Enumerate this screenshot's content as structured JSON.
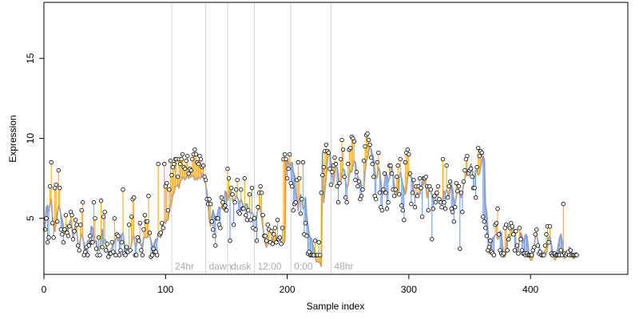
{
  "chart_data": {
    "type": "scatter",
    "title": "",
    "xlabel": "Sample index",
    "ylabel": "Expression",
    "xlim": [
      0,
      480
    ],
    "ylim": [
      1.5,
      18.5
    ],
    "x_ticks": [
      0,
      100,
      200,
      300,
      400
    ],
    "y_ticks": [
      5,
      10,
      15
    ],
    "grid": false,
    "legend": "none",
    "colors": {
      "point_outline": "#000000",
      "fit_line": "#a9a9a9",
      "residual_above": "#ffa500",
      "residual_below": "#6495ed",
      "separator": "#d3d3d3",
      "label": "#a9a9a9"
    },
    "separators": [
      {
        "x": 105,
        "label": "24hr"
      },
      {
        "x": 133,
        "label": "dawn"
      },
      {
        "x": 151,
        "label": "dusk"
      },
      {
        "x": 173,
        "label": "12:00"
      },
      {
        "x": 203,
        "label": "0:00"
      },
      {
        "x": 236,
        "label": "48hr"
      }
    ],
    "series": [
      {
        "x_start": 1,
        "fitted": [
          4.6,
          5.7,
          5.8,
          5.4,
          5.9,
          6.2,
          5.1,
          4.6,
          4.2,
          4.8,
          5.3,
          5.8,
          5.6,
          5.2,
          4.9,
          4.5,
          4.0,
          4.4,
          4.6,
          4.3,
          4.7,
          4.9,
          4.4,
          3.7,
          4.1,
          4.6,
          4.2,
          3.4,
          3.1,
          3.7,
          4.0,
          3.8,
          3.3,
          3.0,
          3.1,
          3.6,
          3.5,
          3.9,
          4.5,
          4.4,
          3.9,
          3.5,
          3.6,
          3.2,
          3.0,
          3.1,
          3.8,
          4.3,
          3.4,
          3.7,
          3.6,
          3.1,
          2.9,
          2.9,
          3.0,
          3.2,
          3.3,
          3.6,
          3.7,
          3.8,
          3.6,
          3.7,
          3.8,
          4.0,
          4.1,
          3.5,
          3.0,
          3.2,
          3.0,
          2.9,
          3.1,
          3.4,
          3.8,
          3.9,
          3.3,
          3.3,
          3.9,
          3.9,
          3.4,
          3.4,
          3.1,
          3.8,
          3.8,
          3.8,
          3.8,
          4.0,
          3.9,
          3.6,
          3.3,
          3.2,
          3.5,
          3.7,
          3.6,
          4.0,
          4.0,
          3.8,
          4.0,
          4.6,
          4.8,
          4.7,
          4.9,
          4.9,
          5.5,
          5.8,
          6.0,
          6.5,
          6.6,
          7.0,
          7.0,
          7.1,
          6.9,
          7.3,
          7.4,
          7.6,
          7.5,
          7.4,
          7.6,
          7.7,
          7.5,
          7.6,
          7.6,
          7.7,
          7.6,
          7.4,
          7.5,
          7.4,
          7.6,
          7.5,
          7.5,
          7.8,
          7.8,
          7.5,
          7.1,
          6.6,
          5.9,
          4.9,
          4.5,
          5.1,
          5.5,
          5.2,
          5.1,
          5.0,
          5.4,
          5.7,
          5.6,
          5.7,
          5.7,
          5.5,
          6.7,
          6.6,
          6.1,
          6.4,
          6.7,
          6.8,
          6.1,
          6.2,
          6.1,
          6.4,
          6.3,
          6.1,
          5.9,
          6.2,
          6.0,
          5.7,
          5.8,
          5.9,
          5.9,
          5.6,
          5.4,
          5.3,
          5.4,
          5.2,
          5.1,
          5.1,
          5.2,
          5.6,
          5.6,
          5.5,
          5.1,
          4.5,
          3.8,
          3.4,
          3.2,
          3.5,
          3.6,
          3.6,
          3.6,
          3.8,
          3.4,
          3.5,
          3.9,
          3.7,
          3.7,
          3.8,
          3.5,
          3.4,
          3.4,
          3.6,
          8.8,
          8.7,
          8.5,
          8.3,
          8.4,
          8.5,
          7.9,
          7.7,
          6.6,
          6.4,
          5.5,
          6.1,
          6.5,
          6.2,
          5.6,
          5.7,
          6.3,
          5.2,
          4.6,
          4.0,
          3.8,
          3.7,
          3.4,
          3.1,
          2.6,
          2.3,
          2.3,
          2.3,
          2.2,
          2.0,
          9.1,
          6.0,
          6.8,
          7.6,
          8.6,
          9.3,
          9.0,
          8.5,
          7.7,
          7.2,
          7.7,
          8.3,
          8.2,
          7.7,
          7.2,
          7.3,
          7.8,
          8.1,
          8.0,
          7.3,
          6.9,
          7.1,
          7.7,
          8.0,
          7.9,
          8.3,
          8.6,
          8.5,
          8.0,
          7.6,
          7.4,
          7.3,
          7.1,
          6.7,
          6.9,
          7.9,
          8.6,
          8.8,
          9.2,
          9.5,
          9.3,
          9.0,
          8.7,
          8.0,
          7.5,
          7.6,
          8.2,
          8.0,
          7.3,
          6.7,
          6.5,
          7.2,
          7.9,
          7.7,
          7.3,
          7.5,
          7.9,
          8.2,
          7.7,
          7.1,
          6.6,
          6.5,
          6.7,
          7.5,
          7.9,
          7.5,
          7.1,
          6.8,
          6.5,
          6.8,
          7.6,
          7.8,
          7.6,
          7.6,
          7.4,
          6.8,
          6.3,
          6.4,
          6.6,
          6.6,
          6.5,
          6.8,
          7.3,
          7.1,
          7.4,
          7.1,
          6.3,
          6.6,
          6.9,
          6.7,
          6.4,
          6.1,
          6.3,
          6.7,
          6.5,
          6.3,
          6.2,
          6.1,
          6.0,
          6.3,
          6.7,
          6.6,
          6.8,
          6.6,
          6.4,
          6.8,
          7.1,
          6.8,
          6.1,
          5.9,
          6.4,
          6.8,
          6.8,
          6.6,
          6.3,
          6.6,
          7.1,
          7.5,
          7.7,
          8.1,
          8.0,
          8.1,
          8.4,
          8.1,
          7.5,
          7.6,
          8.0,
          8.0,
          7.7,
          7.8,
          8.2,
          8.6,
          8.9,
          8.7,
          5.8,
          5.4,
          4.2,
          2.8,
          3.0,
          3.5,
          3.8,
          3.8,
          4.0,
          4.0,
          3.7,
          3.8,
          4.2,
          4.1,
          3.3,
          2.6,
          2.6,
          3.0,
          3.7,
          4.0,
          3.8,
          3.9,
          4.3,
          4.4,
          4.1,
          3.3,
          2.8,
          3.1,
          3.8,
          4.1,
          3.9,
          3.5,
          3.7,
          4.0,
          3.9,
          3.3,
          2.6,
          2.4,
          2.4,
          2.6,
          3.2,
          3.9,
          4.0,
          3.6,
          3.3,
          3.0,
          2.7,
          2.7,
          2.9,
          2.9,
          2.8,
          3.2,
          3.8,
          3.9,
          3.4,
          3.0,
          2.6,
          2.4,
          2.5,
          2.9,
          3.4,
          3.8,
          4.0,
          3.6,
          2.8,
          2.5,
          2.8,
          2.9,
          2.9,
          3.2,
          3.0,
          2.8,
          2.5,
          2.5,
          2.8,
          2.9
        ],
        "observed": [
          4.3,
          5.0,
          3.5,
          3.8,
          7.0,
          8.5,
          4.7,
          3.8,
          6.9,
          7.1,
          4.8,
          8.0,
          6.9,
          4.3,
          4.0,
          3.5,
          4.3,
          5.2,
          4.1,
          3.9,
          4.5,
          5.4,
          5.2,
          3.7,
          4.2,
          4.9,
          4.6,
          3.3,
          3.0,
          4.6,
          5.5,
          6.0,
          2.7,
          2.9,
          3.2,
          2.7,
          3.3,
          3.9,
          3.5,
          3.5,
          6.0,
          5.0,
          3.1,
          2.7,
          3.8,
          2.7,
          6.1,
          3.2,
          5.1,
          5.4,
          3.0,
          3.4,
          2.6,
          2.8,
          2.8,
          3.5,
          2.9,
          5.0,
          2.7,
          4.0,
          3.9,
          2.7,
          3.0,
          3.5,
          6.8,
          2.8,
          2.7,
          3.2,
          2.9,
          4.6,
          3.0,
          5.1,
          6.2,
          6.3,
          2.7,
          2.7,
          3.8,
          3.6,
          4.7,
          3.0,
          2.7,
          4.3,
          5.2,
          4.8,
          4.8,
          6.4,
          4.1,
          2.6,
          2.7,
          3.1,
          2.9,
          2.9,
          2.7,
          8.4,
          4.0,
          4.1,
          4.7,
          4.4,
          8.4,
          7.0,
          7.2,
          5.5,
          6.8,
          8.6,
          7.7,
          8.2,
          8.4,
          8.7,
          8.7,
          7.6,
          8.7,
          8.4,
          8.7,
          9.0,
          8.2,
          8.1,
          8.6,
          8.9,
          7.8,
          8.1,
          8.0,
          8.7,
          9.0,
          9.3,
          9.0,
          8.5,
          8.4,
          8.9,
          8.7,
          8.2,
          8.3,
          7.6,
          7.4,
          6.2,
          5.9,
          6.2,
          5.9,
          4.8,
          4.3,
          3.9,
          3.3,
          5.0,
          5.0,
          4.6,
          4.4,
          6.3,
          6.0,
          5.7,
          5.8,
          5.5,
          8.1,
          7.5,
          3.6,
          6.9,
          6.5,
          4.6,
          6.0,
          6.8,
          7.4,
          5.4,
          5.3,
          6.8,
          5.6,
          5.6,
          7.5,
          5.2,
          4.9,
          5.5,
          6.5,
          4.9,
          6.9,
          4.4,
          5.0,
          4.3,
          3.6,
          5.7,
          6.6,
          7.0,
          6.6,
          5.2,
          3.9,
          3.9,
          3.6,
          4.6,
          4.3,
          3.5,
          4.2,
          3.4,
          4.0,
          4.4,
          3.5,
          4.9,
          3.7,
          3.8,
          3.4,
          4.4,
          8.7,
          9.0,
          8.7,
          7.5,
          8.1,
          9.0,
          7.2,
          7.0,
          5.5,
          5.9,
          6.0,
          7.4,
          8.5,
          7.5,
          5.3,
          6.2,
          8.5,
          4.0,
          4.7,
          3.9,
          2.8,
          2.9,
          2.7,
          2.7,
          2.7,
          2.7,
          3.6,
          2.7,
          2.7,
          3.5,
          2.7,
          6.6,
          7.7,
          8.2,
          9.2,
          9.6,
          9.2,
          9.1,
          8.1,
          7.1,
          7.9,
          8.3,
          8.8,
          8.4,
          7.0,
          6.0,
          7.2,
          8.7,
          9.9,
          9.3,
          7.6,
          6.3,
          6.0,
          8.4,
          9.3,
          9.4,
          10.1,
          10.0,
          9.8,
          7.4,
          7.9,
          7.0,
          7.3,
          6.2,
          6.4,
          6.8,
          8.6,
          9.5,
          10.2,
          10.3,
          9.9,
          9.6,
          8.8,
          8.4,
          7.6,
          6.4,
          6.2,
          8.5,
          9.1,
          6.6,
          5.7,
          5.5,
          6.8,
          7.8,
          6.6,
          5.6,
          6.0,
          8.3,
          8.3,
          7.8,
          6.8,
          6.4,
          6.8,
          7.6,
          8.3,
          6.5,
          8.7,
          5.8,
          5.5,
          4.9,
          8.5,
          9.1,
          9.3,
          9.0,
          7.8,
          5.9,
          6.6,
          7.4,
          5.7,
          7.0,
          6.4,
          7.0,
          7.5,
          6.9,
          5.1,
          7.5,
          7.5,
          7.6,
          7.0,
          5.5,
          7.0,
          6.8,
          3.7,
          5.6,
          6.4,
          6.0,
          6.6,
          7.0,
          6.2,
          6.0,
          5.7,
          8.7,
          6.0,
          5.6,
          8.3,
          6.3,
          7.0,
          7.3,
          5.6,
          5.4,
          4.8,
          5.7,
          7.2,
          6.7,
          7.0,
          3.1,
          6.6,
          5.4,
          7.3,
          8.0,
          8.7,
          8.9,
          7.8,
          8.0,
          8.1,
          7.6,
          6.9,
          6.9,
          6.3,
          8.2,
          9.4,
          8.9,
          9.2,
          9.1,
          5.1,
          4.8,
          4.4,
          3.9,
          3.0,
          3.2,
          3.6,
          2.9,
          2.8,
          2.7,
          4.6,
          4.7,
          5.6,
          4.0,
          3.0,
          2.8,
          2.7,
          2.8,
          4.4,
          4.6,
          3.0,
          3.7,
          4.4,
          4.7,
          4.5,
          4.0,
          3.0,
          4.2,
          3.3,
          2.8,
          4.4,
          3.7,
          3.0,
          2.8,
          2.8,
          2.7,
          2.8,
          2.7,
          2.7,
          2.7,
          2.7,
          3.0,
          3.2,
          4.0,
          4.3,
          3.3,
          2.8,
          2.9,
          2.7,
          2.7,
          2.7,
          3.3,
          4.0,
          4.5,
          3.5,
          4.5,
          2.8,
          2.7,
          2.8,
          2.8,
          2.7,
          2.7,
          2.7,
          2.7,
          3.0,
          2.7,
          5.9,
          2.8,
          2.7,
          2.8,
          2.9,
          2.7,
          3.0,
          2.7,
          2.7,
          2.7,
          2.7,
          2.7
        ]
      }
    ]
  }
}
